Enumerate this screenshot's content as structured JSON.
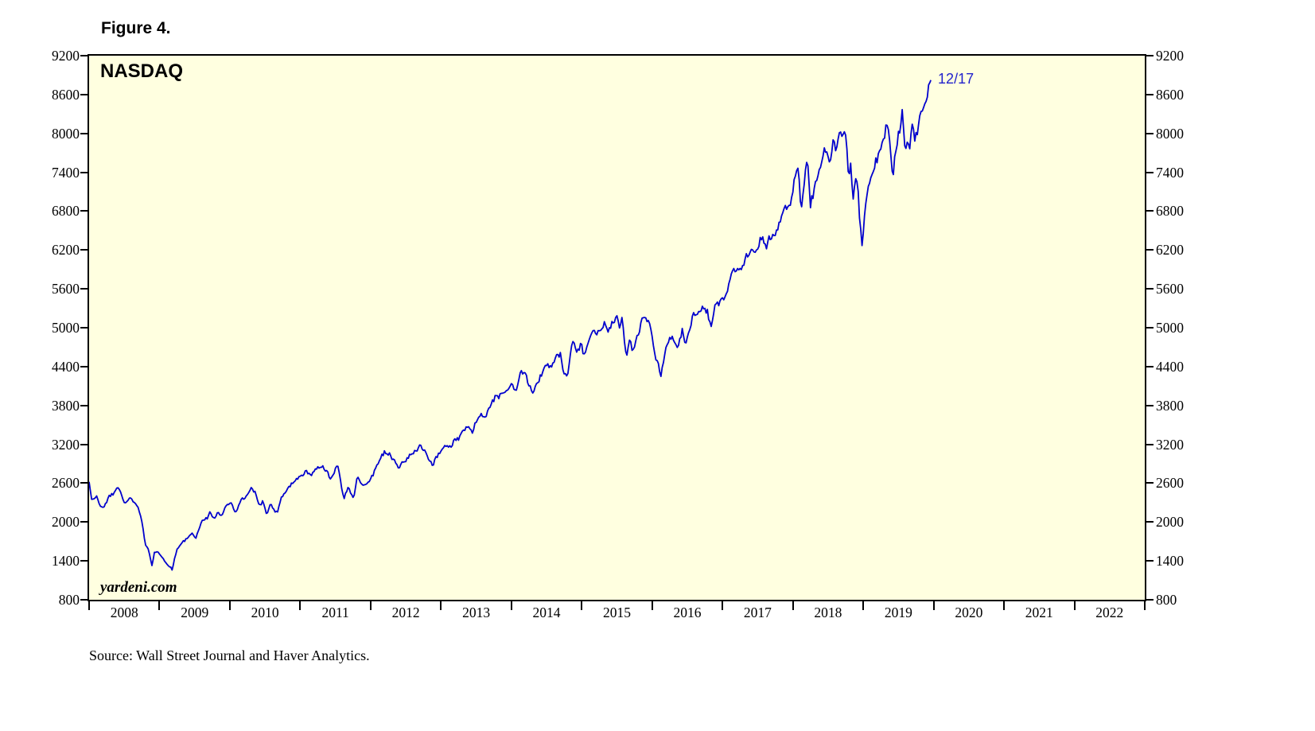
{
  "figure_label": "Figure 4.",
  "source_note": "Source: Wall Street Journal and Haver Analytics.",
  "chart": {
    "title": "NASDAQ",
    "watermark": "yardeni.com",
    "plot_bg": "#FFFFE0",
    "line_color": "#0000CD",
    "annotation_color": "#2222CC",
    "axis_color": "#000000"
  },
  "chart_data": {
    "type": "line",
    "title": "NASDAQ",
    "xlabel": "",
    "ylabel": "",
    "grid": false,
    "legend": "none",
    "x_range": [
      2008,
      2023
    ],
    "y_range": [
      800,
      9200
    ],
    "y_ticks": [
      800,
      1400,
      2000,
      2600,
      3200,
      3800,
      4400,
      5000,
      5600,
      6200,
      6800,
      7400,
      8000,
      8600,
      9200
    ],
    "x_tick_labels": [
      "2008",
      "2009",
      "2010",
      "2011",
      "2012",
      "2013",
      "2014",
      "2015",
      "2016",
      "2017",
      "2018",
      "2019",
      "2020",
      "2021",
      "2022"
    ],
    "annotation": {
      "text": "12/17",
      "x": 2019.96,
      "y": 8823
    },
    "sampling": {
      "seed": 20191217,
      "per_year": 56,
      "rel_noise": 0.01
    },
    "series": [
      {
        "name": "NASDAQ Composite Index",
        "color": "#0000CD",
        "points": [
          [
            2008.0,
            2600
          ],
          [
            2008.04,
            2340
          ],
          [
            2008.1,
            2410
          ],
          [
            2008.15,
            2270
          ],
          [
            2008.21,
            2210
          ],
          [
            2008.28,
            2400
          ],
          [
            2008.36,
            2450
          ],
          [
            2008.42,
            2550
          ],
          [
            2008.5,
            2290
          ],
          [
            2008.58,
            2380
          ],
          [
            2008.66,
            2270
          ],
          [
            2008.71,
            2180
          ],
          [
            2008.76,
            1950
          ],
          [
            2008.8,
            1650
          ],
          [
            2008.85,
            1550
          ],
          [
            2008.89,
            1320
          ],
          [
            2008.93,
            1530
          ],
          [
            2008.97,
            1560
          ],
          [
            2009.02,
            1480
          ],
          [
            2009.08,
            1380
          ],
          [
            2009.18,
            1270
          ],
          [
            2009.24,
            1550
          ],
          [
            2009.32,
            1680
          ],
          [
            2009.4,
            1750
          ],
          [
            2009.46,
            1830
          ],
          [
            2009.52,
            1760
          ],
          [
            2009.6,
            2010
          ],
          [
            2009.68,
            2060
          ],
          [
            2009.72,
            2150
          ],
          [
            2009.77,
            2050
          ],
          [
            2009.83,
            2150
          ],
          [
            2009.88,
            2090
          ],
          [
            2009.95,
            2270
          ],
          [
            2010.02,
            2310
          ],
          [
            2010.08,
            2130
          ],
          [
            2010.16,
            2340
          ],
          [
            2010.24,
            2400
          ],
          [
            2010.3,
            2530
          ],
          [
            2010.36,
            2460
          ],
          [
            2010.42,
            2260
          ],
          [
            2010.47,
            2310
          ],
          [
            2010.53,
            2100
          ],
          [
            2010.58,
            2300
          ],
          [
            2010.63,
            2180
          ],
          [
            2010.68,
            2150
          ],
          [
            2010.73,
            2370
          ],
          [
            2010.8,
            2460
          ],
          [
            2010.87,
            2580
          ],
          [
            2010.95,
            2660
          ],
          [
            2011.02,
            2700
          ],
          [
            2011.08,
            2790
          ],
          [
            2011.15,
            2720
          ],
          [
            2011.22,
            2800
          ],
          [
            2011.3,
            2870
          ],
          [
            2011.38,
            2790
          ],
          [
            2011.44,
            2650
          ],
          [
            2011.5,
            2820
          ],
          [
            2011.54,
            2860
          ],
          [
            2011.58,
            2600
          ],
          [
            2011.62,
            2340
          ],
          [
            2011.68,
            2560
          ],
          [
            2011.72,
            2440
          ],
          [
            2011.76,
            2340
          ],
          [
            2011.81,
            2690
          ],
          [
            2011.86,
            2600
          ],
          [
            2011.9,
            2540
          ],
          [
            2011.95,
            2620
          ],
          [
            2012.0,
            2650
          ],
          [
            2012.06,
            2800
          ],
          [
            2012.13,
            2960
          ],
          [
            2012.2,
            3090
          ],
          [
            2012.27,
            3050
          ],
          [
            2012.33,
            2950
          ],
          [
            2012.4,
            2850
          ],
          [
            2012.45,
            2920
          ],
          [
            2012.5,
            2930
          ],
          [
            2012.56,
            3040
          ],
          [
            2012.62,
            3070
          ],
          [
            2012.7,
            3180
          ],
          [
            2012.76,
            3120
          ],
          [
            2012.82,
            3000
          ],
          [
            2012.88,
            2860
          ],
          [
            2012.94,
            3010
          ],
          [
            2013.0,
            3100
          ],
          [
            2013.07,
            3180
          ],
          [
            2013.13,
            3160
          ],
          [
            2013.2,
            3270
          ],
          [
            2013.27,
            3300
          ],
          [
            2013.33,
            3440
          ],
          [
            2013.4,
            3460
          ],
          [
            2013.45,
            3400
          ],
          [
            2013.52,
            3610
          ],
          [
            2013.58,
            3670
          ],
          [
            2013.63,
            3600
          ],
          [
            2013.7,
            3780
          ],
          [
            2013.76,
            3920
          ],
          [
            2013.82,
            3920
          ],
          [
            2013.88,
            3990
          ],
          [
            2013.94,
            4060
          ],
          [
            2014.0,
            4160
          ],
          [
            2014.06,
            4000
          ],
          [
            2014.12,
            4280
          ],
          [
            2014.19,
            4330
          ],
          [
            2014.25,
            4130
          ],
          [
            2014.3,
            4000
          ],
          [
            2014.37,
            4120
          ],
          [
            2014.44,
            4320
          ],
          [
            2014.5,
            4440
          ],
          [
            2014.56,
            4370
          ],
          [
            2014.63,
            4560
          ],
          [
            2014.7,
            4580
          ],
          [
            2014.75,
            4280
          ],
          [
            2014.79,
            4220
          ],
          [
            2014.85,
            4690
          ],
          [
            2014.89,
            4790
          ],
          [
            2014.93,
            4650
          ],
          [
            2014.99,
            4736
          ],
          [
            2015.04,
            4570
          ],
          [
            2015.1,
            4760
          ],
          [
            2015.16,
            4960
          ],
          [
            2015.22,
            4880
          ],
          [
            2015.28,
            5010
          ],
          [
            2015.33,
            5060
          ],
          [
            2015.38,
            4920
          ],
          [
            2015.44,
            5100
          ],
          [
            2015.5,
            5160
          ],
          [
            2015.54,
            5010
          ],
          [
            2015.57,
            5220
          ],
          [
            2015.63,
            4530
          ],
          [
            2015.68,
            4830
          ],
          [
            2015.73,
            4620
          ],
          [
            2015.8,
            4900
          ],
          [
            2015.86,
            5120
          ],
          [
            2015.92,
            5100
          ],
          [
            2015.98,
            5010
          ],
          [
            2016.03,
            4600
          ],
          [
            2016.08,
            4470
          ],
          [
            2016.13,
            4270
          ],
          [
            2016.2,
            4730
          ],
          [
            2016.26,
            4870
          ],
          [
            2016.32,
            4780
          ],
          [
            2016.37,
            4720
          ],
          [
            2016.43,
            4950
          ],
          [
            2016.48,
            4710
          ],
          [
            2016.54,
            5030
          ],
          [
            2016.6,
            5230
          ],
          [
            2016.66,
            5260
          ],
          [
            2016.72,
            5300
          ],
          [
            2016.78,
            5250
          ],
          [
            2016.84,
            5050
          ],
          [
            2016.9,
            5370
          ],
          [
            2016.96,
            5390
          ],
          [
            2017.02,
            5480
          ],
          [
            2017.08,
            5640
          ],
          [
            2017.14,
            5840
          ],
          [
            2017.2,
            5900
          ],
          [
            2017.27,
            5850
          ],
          [
            2017.33,
            6100
          ],
          [
            2017.4,
            6210
          ],
          [
            2017.45,
            6140
          ],
          [
            2017.52,
            6310
          ],
          [
            2017.57,
            6380
          ],
          [
            2017.62,
            6220
          ],
          [
            2017.68,
            6430
          ],
          [
            2017.74,
            6450
          ],
          [
            2017.8,
            6590
          ],
          [
            2017.86,
            6740
          ],
          [
            2017.91,
            6870
          ],
          [
            2017.97,
            6900
          ],
          [
            2018.03,
            7300
          ],
          [
            2018.08,
            7505
          ],
          [
            2018.12,
            6780
          ],
          [
            2018.17,
            7330
          ],
          [
            2018.21,
            7640
          ],
          [
            2018.25,
            6920
          ],
          [
            2018.3,
            7090
          ],
          [
            2018.36,
            7380
          ],
          [
            2018.42,
            7660
          ],
          [
            2018.47,
            7750
          ],
          [
            2018.52,
            7510
          ],
          [
            2018.57,
            7850
          ],
          [
            2018.62,
            7710
          ],
          [
            2018.67,
            8110
          ],
          [
            2018.71,
            7990
          ],
          [
            2018.75,
            8030
          ],
          [
            2018.79,
            7330
          ],
          [
            2018.82,
            7530
          ],
          [
            2018.86,
            6910
          ],
          [
            2018.89,
            7330
          ],
          [
            2018.92,
            7190
          ],
          [
            2018.95,
            6640
          ],
          [
            2018.985,
            6190
          ],
          [
            2019.01,
            6660
          ],
          [
            2019.06,
            7080
          ],
          [
            2019.12,
            7420
          ],
          [
            2019.17,
            7560
          ],
          [
            2019.22,
            7650
          ],
          [
            2019.28,
            7830
          ],
          [
            2019.33,
            8160
          ],
          [
            2019.38,
            7850
          ],
          [
            2019.42,
            7330
          ],
          [
            2019.47,
            7820
          ],
          [
            2019.52,
            8090
          ],
          [
            2019.56,
            8330
          ],
          [
            2019.6,
            7660
          ],
          [
            2019.63,
            7960
          ],
          [
            2019.66,
            7750
          ],
          [
            2019.7,
            8120
          ],
          [
            2019.74,
            7910
          ],
          [
            2019.78,
            8090
          ],
          [
            2019.83,
            8310
          ],
          [
            2019.87,
            8480
          ],
          [
            2019.91,
            8630
          ],
          [
            2019.96,
            8823
          ]
        ]
      }
    ]
  }
}
